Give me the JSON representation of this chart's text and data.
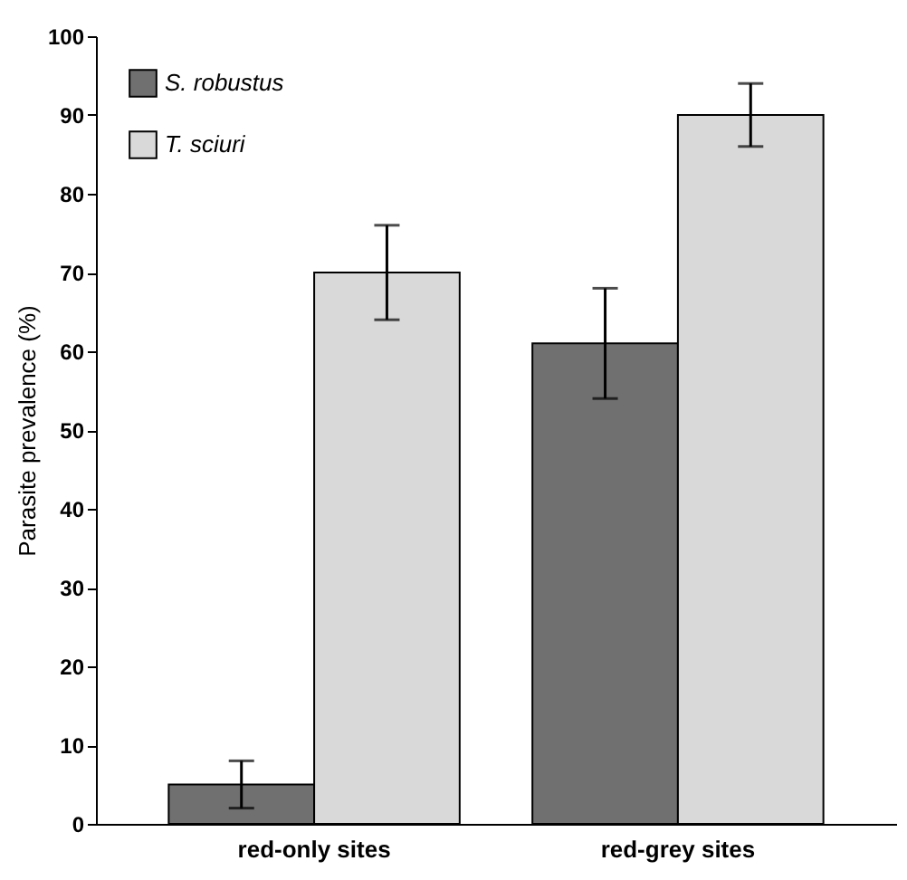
{
  "chart_data": {
    "type": "bar",
    "ylabel": "Parasite prevalence (%)",
    "categories": [
      "red-only sites",
      "red-grey sites"
    ],
    "series": [
      {
        "name": "S. robustus",
        "color": "#707070",
        "values": [
          5,
          61
        ],
        "errors": [
          [
            2,
            8
          ],
          [
            54,
            68
          ]
        ]
      },
      {
        "name": "T. sciuri",
        "color": "#d9d9d9",
        "values": [
          70,
          90
        ],
        "errors": [
          [
            64,
            76
          ],
          [
            86,
            94
          ]
        ]
      }
    ],
    "ylim": [
      0,
      100
    ],
    "yticks": [
      0,
      10,
      20,
      30,
      40,
      50,
      60,
      70,
      80,
      90,
      100
    ],
    "grid": false,
    "legend": "top left"
  }
}
